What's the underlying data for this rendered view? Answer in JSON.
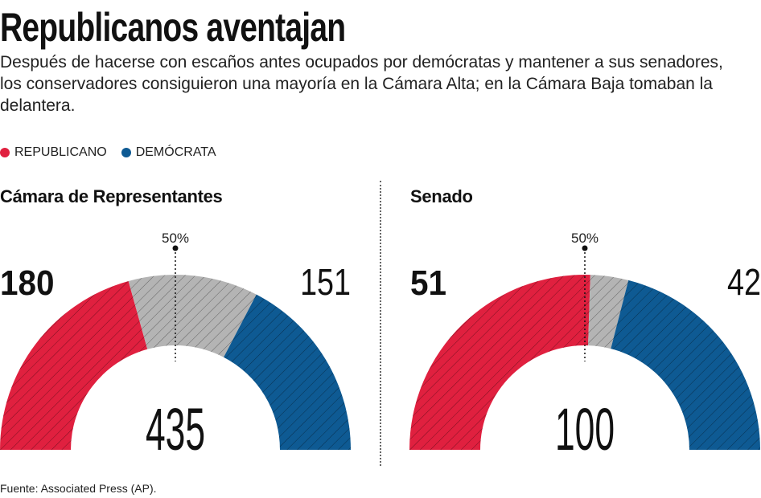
{
  "title": "Republicanos aventajan",
  "subtitle": "Después de hacerse con escaños antes ocupados por demócratas y mantener a sus senadores, los conservadores consiguieron una mayoría en la Cámara Alta; en la Cámara Baja tomaban la delantera.",
  "legend": [
    {
      "label": "REPUBLICANO",
      "color": "#e0203f"
    },
    {
      "label": "DEMÓCRATA",
      "color": "#0e5a93"
    }
  ],
  "colors": {
    "republicano": "#e0203f",
    "democrata": "#0e5a93",
    "pendiente": "#b4b4b4"
  },
  "source": "Fuente: Associated Press (AP).",
  "chart_data": [
    {
      "type": "semicircle",
      "title": "Cámara de Representantes",
      "marker_label": "50%",
      "total": 435,
      "total_label": "435",
      "republicano": 180,
      "republicano_label": "180",
      "democrata": 151,
      "democrata_label": "151",
      "pendiente": 104
    },
    {
      "type": "semicircle",
      "title": "Senado",
      "marker_label": "50%",
      "total": 100,
      "total_label": "100",
      "republicano": 51,
      "republicano_label": "51",
      "democrata": 42,
      "democrata_label": "42",
      "pendiente": 7
    }
  ]
}
